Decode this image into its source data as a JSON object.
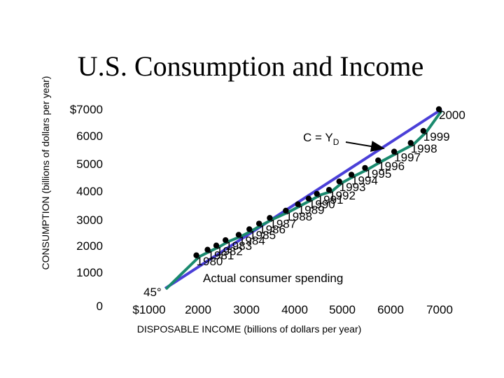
{
  "chart_data": {
    "type": "scatter",
    "title": "U.S. Consumption and Income",
    "xlabel": "DISPOSABLE INCOME (billions of dollars per year)",
    "ylabel": "CONSUMPTION (billions of dollars per year)",
    "xlim": [
      0,
      7000
    ],
    "ylim": [
      0,
      7000
    ],
    "x_ticks": [
      "0",
      "$1000",
      "2000",
      "3000",
      "4000",
      "5000",
      "6000",
      "7000"
    ],
    "y_ticks": [
      "0",
      "1000",
      "2000",
      "3000",
      "4000",
      "5000",
      "6000",
      "$7000"
    ],
    "grid": false,
    "angle_label": "45°",
    "reference_line": {
      "label_main": "C = Y",
      "label_sub": "D",
      "from": [
        0,
        0
      ],
      "to": [
        7000,
        7000
      ],
      "color": "#4a3fd8"
    },
    "series": [
      {
        "label": "Actual consumer spending",
        "color": "#1a8a6e",
        "points": [
          {
            "year": "1980",
            "x": 2010,
            "y": 1750
          },
          {
            "year": "1981",
            "x": 2240,
            "y": 1950
          },
          {
            "year": "1982",
            "x": 2420,
            "y": 2100
          },
          {
            "year": "1983",
            "x": 2610,
            "y": 2290
          },
          {
            "year": "1984",
            "x": 2880,
            "y": 2480
          },
          {
            "year": "1985",
            "x": 3100,
            "y": 2680
          },
          {
            "year": "1986",
            "x": 3300,
            "y": 2880
          },
          {
            "year": "1987",
            "x": 3520,
            "y": 3080
          },
          {
            "year": "1988",
            "x": 3850,
            "y": 3340
          },
          {
            "year": "1989",
            "x": 4100,
            "y": 3570
          },
          {
            "year": "1990",
            "x": 4320,
            "y": 3770
          },
          {
            "year": "1991",
            "x": 4490,
            "y": 3940
          },
          {
            "year": "1992",
            "x": 4740,
            "y": 4080
          },
          {
            "year": "1993",
            "x": 4950,
            "y": 4380
          },
          {
            "year": "1994",
            "x": 5200,
            "y": 4620
          },
          {
            "year": "1995",
            "x": 5480,
            "y": 4860
          },
          {
            "year": "1996",
            "x": 5750,
            "y": 5130
          },
          {
            "year": "1997",
            "x": 6080,
            "y": 5440
          },
          {
            "year": "1998",
            "x": 6420,
            "y": 5750
          },
          {
            "year": "1999",
            "x": 6680,
            "y": 6180
          },
          {
            "year": "2000",
            "x": 7000,
            "y": 6950
          }
        ]
      }
    ]
  }
}
